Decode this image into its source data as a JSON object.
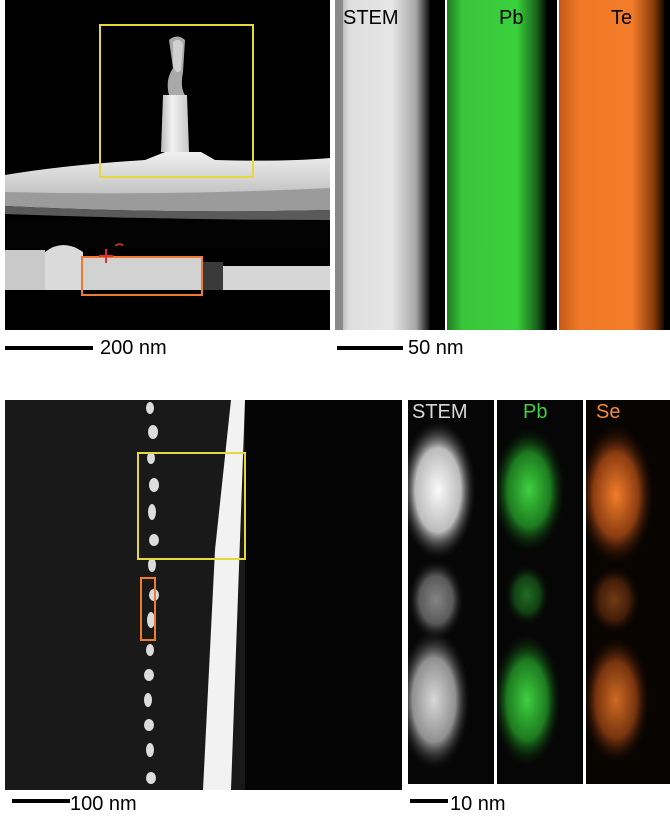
{
  "top": {
    "overview": {
      "scale_label": "200 nm"
    },
    "maps": {
      "scale_label": "50 nm",
      "channels": [
        {
          "label": "STEM",
          "color": "#e8e8e8"
        },
        {
          "label": "Pb",
          "color": "#33cc33"
        },
        {
          "label": "Te",
          "color": "#ff8020"
        }
      ]
    }
  },
  "bottom": {
    "overview": {
      "scale_label": "100 nm"
    },
    "maps": {
      "scale_label": "10 nm",
      "channels": [
        {
          "label": "STEM",
          "color": "#e8e8e8"
        },
        {
          "label": "Pb",
          "color": "#33cc33"
        },
        {
          "label": "Se",
          "color": "#ff8020"
        }
      ]
    }
  },
  "annotations": {
    "box_colors": {
      "yellow": "#e6d83a",
      "orange": "#f07a30"
    }
  }
}
